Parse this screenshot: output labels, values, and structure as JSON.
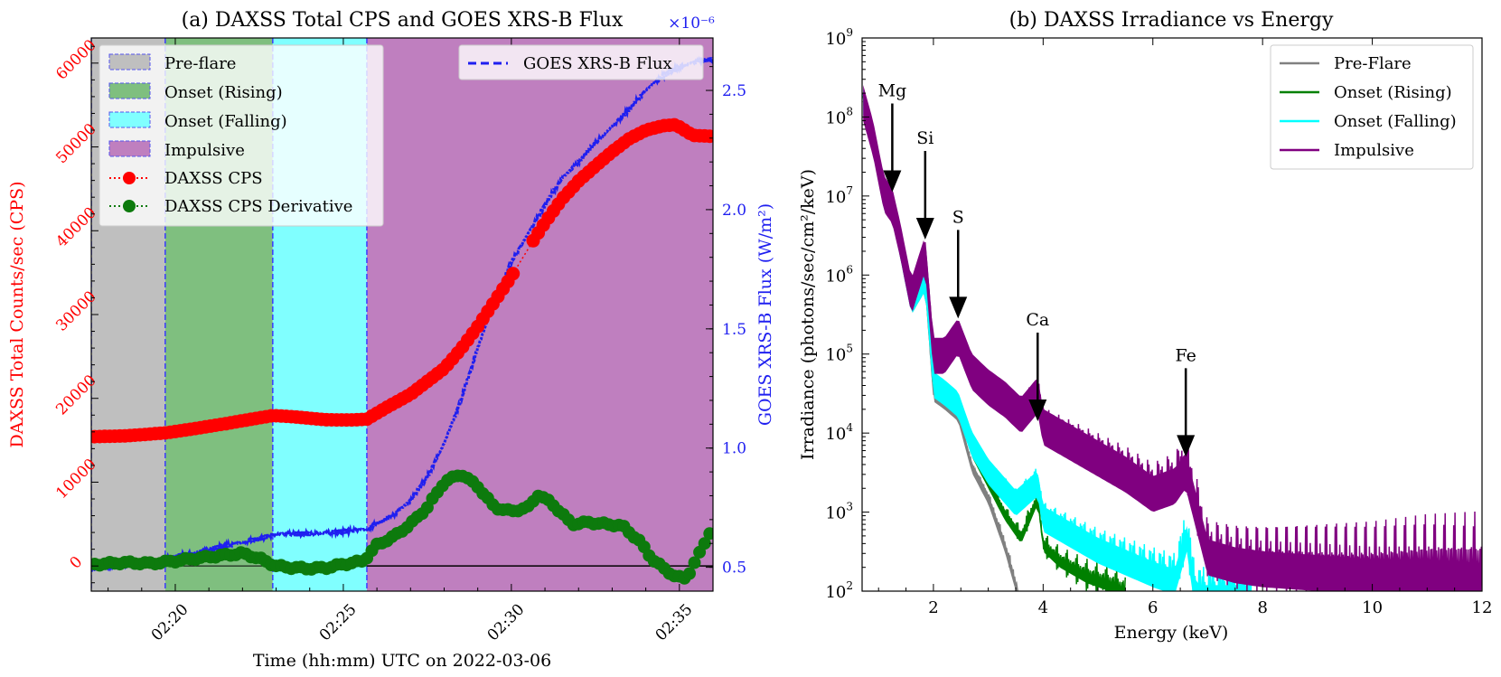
{
  "chart_data": [
    {
      "id": "a",
      "type": "line",
      "title": "(a) DAXSS Total CPS and GOES XRS-B Flux",
      "xlabel": "Time (hh:mm) UTC on 2022-03-06",
      "ylabel_left": "DAXSS Total Counts/sec (CPS)",
      "ylabel_right": "GOES XRS-B Flux (W/m²)",
      "right_axis_multiplier": "×10⁻⁶",
      "x_range_minutes": [
        17.5,
        36.0
      ],
      "x_ticks": [
        {
          "value": 20,
          "label": "02:20"
        },
        {
          "value": 25,
          "label": "02:25"
        },
        {
          "value": 30,
          "label": "02:30"
        },
        {
          "value": 35,
          "label": "02:35"
        }
      ],
      "ylim_left": [
        -3000,
        63000
      ],
      "y_ticks_left": [
        0,
        10000,
        20000,
        30000,
        40000,
        50000,
        60000
      ],
      "ylim_right": [
        0.4,
        2.72
      ],
      "y_ticks_right": [
        0.5,
        1.0,
        1.5,
        2.0,
        2.5
      ],
      "colors": {
        "cps": "#ff0000",
        "goes": "#1f1ff0",
        "derivative": "#0d7a0d",
        "left_axis": "#ff0000",
        "right_axis": "#1f1ff0"
      },
      "phases": [
        {
          "name": "Pre-flare",
          "start": 17.5,
          "end": 19.7,
          "color": "#bfbfbf"
        },
        {
          "name": "Onset (Rising)",
          "start": 19.7,
          "end": 22.9,
          "color": "#7fbf7f"
        },
        {
          "name": "Onset (Falling)",
          "start": 22.9,
          "end": 25.7,
          "color": "#80ffff"
        },
        {
          "name": "Impulsive",
          "start": 25.7,
          "end": 36.0,
          "color": "#bf7fbf"
        }
      ],
      "legend_left": [
        "Pre-flare",
        "Onset (Rising)",
        "Onset (Falling)",
        "Impulsive",
        "DAXSS CPS",
        "DAXSS CPS Derivative"
      ],
      "legend_right": [
        "GOES XRS-B Flux"
      ],
      "series": [
        {
          "name": "DAXSS CPS",
          "axis": "left",
          "x": [
            17.6,
            18.5,
            19.3,
            19.7,
            20.5,
            21.5,
            22.5,
            22.9,
            23.5,
            24.5,
            25.3,
            25.7,
            26.3,
            27.0,
            27.5,
            28.0,
            28.5,
            29.0,
            29.5,
            30.0,
            30.6,
            31.0,
            31.5,
            32.0,
            32.5,
            33.0,
            33.5,
            34.0,
            34.5,
            34.9,
            35.4,
            35.9
          ],
          "values": [
            15500,
            15600,
            15800,
            15900,
            16300,
            16900,
            17600,
            17900,
            17800,
            17500,
            17500,
            17600,
            19000,
            20500,
            22000,
            23500,
            25800,
            28500,
            31500,
            34500,
            38500,
            41000,
            43800,
            46000,
            47800,
            49500,
            51000,
            52000,
            52500,
            52600,
            51300,
            51200
          ]
        },
        {
          "name": "DAXSS CPS Derivative",
          "axis": "left",
          "x": [
            17.6,
            18.5,
            19.3,
            20.0,
            20.8,
            21.5,
            22.0,
            22.5,
            23.0,
            23.5,
            24.0,
            24.5,
            25.0,
            25.6,
            26.0,
            26.5,
            27.0,
            27.5,
            28.0,
            28.5,
            29.0,
            29.5,
            30.0,
            30.5,
            30.8,
            31.2,
            31.8,
            32.3,
            32.8,
            33.3,
            33.8,
            34.2,
            34.6,
            34.9,
            35.2,
            35.6,
            35.9
          ],
          "values": [
            200,
            400,
            300,
            600,
            1000,
            1300,
            1500,
            900,
            0,
            -200,
            -300,
            -200,
            200,
            600,
            2500,
            3500,
            5000,
            7000,
            10000,
            11000,
            9500,
            7000,
            6500,
            7000,
            8500,
            7500,
            5000,
            5200,
            5000,
            4800,
            3000,
            800,
            -500,
            -1300,
            -1500,
            1500,
            4000
          ]
        },
        {
          "name": "GOES XRS-B Flux",
          "axis": "right",
          "x": [
            17.5,
            18.5,
            19.5,
            20.5,
            21.5,
            22.5,
            23.0,
            24.0,
            25.0,
            25.7,
            26.5,
            27.0,
            27.5,
            28.0,
            28.5,
            29.0,
            29.5,
            30.0,
            30.5,
            31.0,
            31.5,
            32.0,
            32.5,
            33.0,
            33.5,
            34.0,
            34.5,
            35.0,
            35.5,
            36.0
          ],
          "values": [
            0.49,
            0.51,
            0.53,
            0.56,
            0.59,
            0.62,
            0.64,
            0.64,
            0.65,
            0.66,
            0.72,
            0.78,
            0.88,
            1.02,
            1.2,
            1.42,
            1.62,
            1.78,
            1.9,
            2.02,
            2.13,
            2.2,
            2.28,
            2.35,
            2.42,
            2.5,
            2.56,
            2.6,
            2.62,
            2.63
          ]
        }
      ]
    },
    {
      "id": "b",
      "type": "line",
      "title": "(b) DAXSS Irradiance vs Energy",
      "xlabel": "Energy (keV)",
      "ylabel": "Irradiance (photons/sec/cm²/keV)",
      "y_scale": "log",
      "xlim": [
        0.7,
        12
      ],
      "x_ticks": [
        2,
        4,
        6,
        8,
        10,
        12
      ],
      "ylim_log10": [
        2,
        9
      ],
      "y_ticks_log10": [
        2,
        3,
        4,
        5,
        6,
        7,
        8,
        9
      ],
      "legend": [
        "Pre-Flare",
        "Onset (Rising)",
        "Onset (Falling)",
        "Impulsive"
      ],
      "colors": {
        "Pre-Flare": "#808080",
        "Onset (Rising)": "#008000",
        "Onset (Falling)": "#00ffff",
        "Impulsive": "#800080"
      },
      "annotations": [
        {
          "label": "Mg",
          "energy": 1.25,
          "tip_log10": 7.05
        },
        {
          "label": "Si",
          "energy": 1.85,
          "tip_log10": 6.45
        },
        {
          "label": "S",
          "energy": 2.45,
          "tip_log10": 5.45
        },
        {
          "label": "Ca",
          "energy": 3.9,
          "tip_log10": 4.15
        },
        {
          "label": "Fe",
          "energy": 6.6,
          "tip_log10": 3.7
        }
      ],
      "series": [
        {
          "name": "Pre-Flare",
          "x": [
            0.72,
            0.9,
            1.1,
            1.25,
            1.4,
            1.6,
            1.85,
            2.0,
            2.2,
            2.45,
            2.7,
            3.0,
            3.3,
            3.5,
            3.55
          ],
          "values_log10": [
            8.2,
            7.7,
            6.9,
            6.8,
            6.3,
            5.6,
            5.9,
            4.5,
            4.4,
            4.25,
            3.6,
            3.2,
            2.6,
            2.1,
            2.0
          ]
        },
        {
          "name": "Onset (Rising)",
          "x": [
            0.72,
            0.9,
            1.1,
            1.25,
            1.4,
            1.6,
            1.85,
            2.0,
            2.2,
            2.45,
            2.7,
            3.0,
            3.3,
            3.6,
            3.9,
            4.0,
            4.3,
            4.8,
            5.2,
            5.5
          ],
          "values_log10": [
            8.25,
            7.75,
            7.0,
            6.9,
            6.4,
            5.7,
            6.0,
            4.6,
            4.5,
            4.35,
            3.8,
            3.4,
            3.0,
            2.7,
            3.2,
            2.6,
            2.4,
            2.2,
            2.1,
            2.0
          ]
        },
        {
          "name": "Onset (Falling)",
          "x": [
            0.72,
            0.9,
            1.1,
            1.25,
            1.4,
            1.6,
            1.85,
            2.0,
            2.2,
            2.45,
            2.7,
            3.0,
            3.5,
            3.9,
            4.0,
            4.5,
            5.0,
            5.5,
            6.0,
            6.4,
            6.62,
            6.75,
            6.85,
            7.8
          ],
          "values_log10": [
            8.28,
            7.8,
            7.05,
            6.95,
            6.45,
            5.75,
            6.05,
            4.7,
            4.6,
            4.45,
            3.95,
            3.6,
            3.2,
            3.45,
            3.0,
            2.8,
            2.6,
            2.45,
            2.3,
            2.2,
            2.75,
            2.1,
            2.0,
            2.0
          ]
        },
        {
          "name": "Impulsive",
          "x": [
            0.72,
            0.9,
            1.1,
            1.25,
            1.4,
            1.6,
            1.85,
            2.0,
            2.2,
            2.45,
            2.7,
            3.0,
            3.3,
            3.6,
            3.9,
            4.0,
            4.5,
            5.0,
            5.5,
            6.0,
            6.4,
            6.6,
            6.8,
            7.0,
            7.5,
            8.0,
            9.0,
            10.0,
            11.0,
            12.0
          ],
          "values_log10": [
            8.3,
            7.85,
            7.15,
            7.0,
            6.55,
            5.85,
            6.4,
            5.1,
            5.1,
            5.35,
            4.9,
            4.7,
            4.55,
            4.35,
            4.6,
            4.2,
            4.0,
            3.8,
            3.6,
            3.35,
            3.45,
            3.65,
            3.1,
            2.55,
            2.45,
            2.4,
            2.35,
            2.3,
            2.3,
            2.25
          ]
        }
      ]
    }
  ]
}
